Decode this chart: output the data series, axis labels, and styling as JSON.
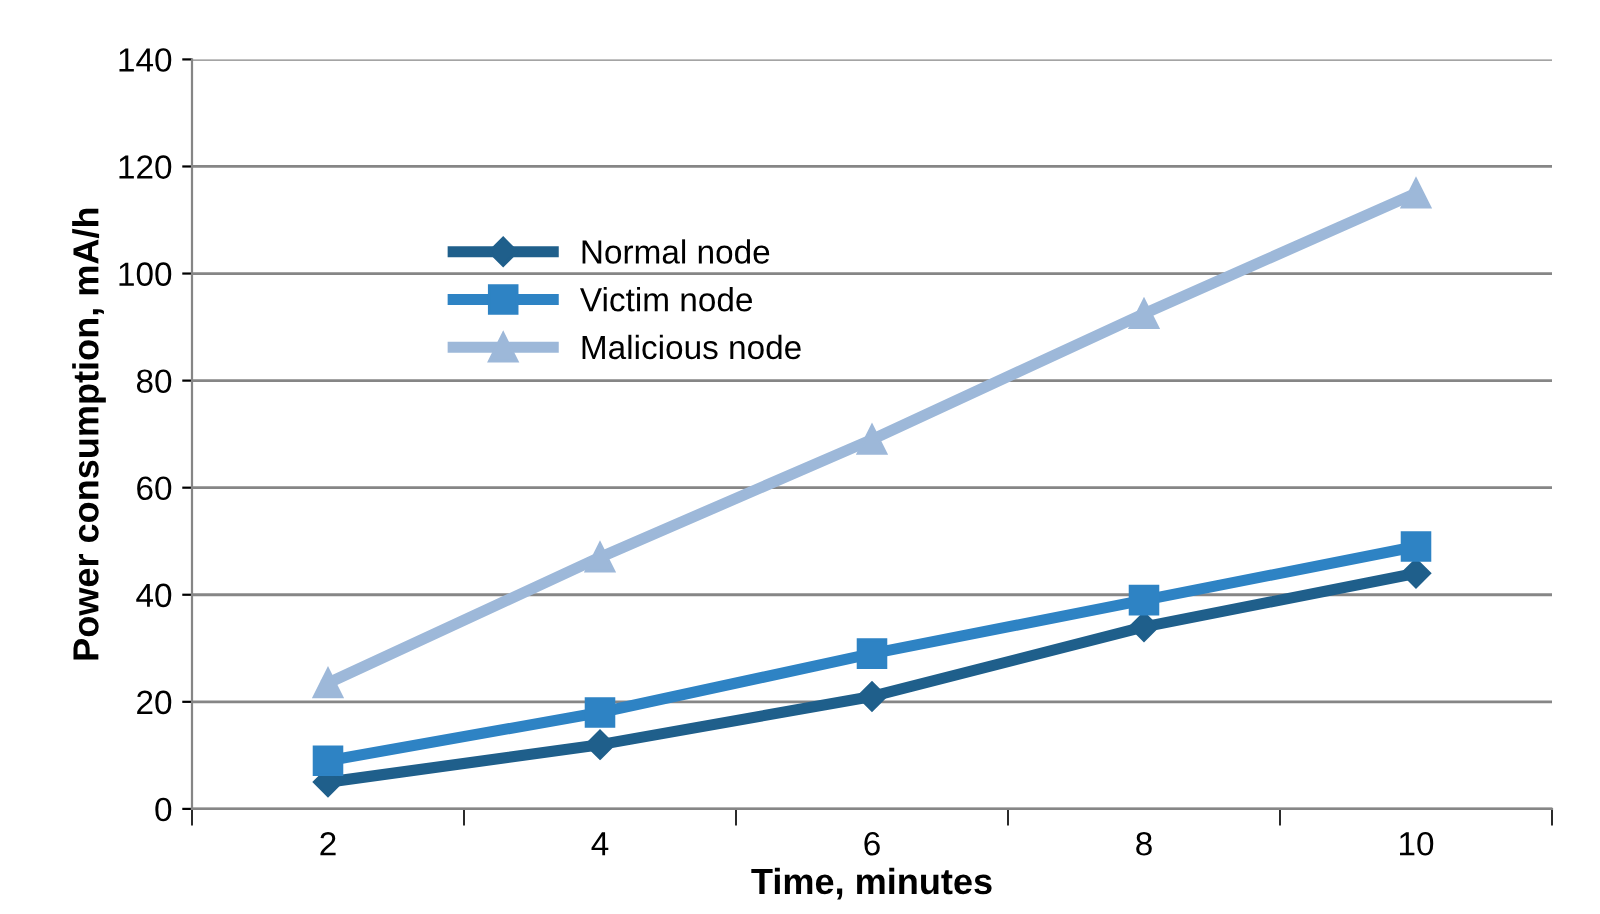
{
  "chart_data": {
    "type": "line",
    "xlabel": "Time, minutes",
    "ylabel": "Power consumption, mA/h",
    "categories": [
      "2",
      "4",
      "6",
      "8",
      "10"
    ],
    "series": [
      {
        "name": "Normal node",
        "color": "#1f5f8b",
        "marker": "diamond",
        "values": [
          5,
          12,
          21,
          34,
          44
        ]
      },
      {
        "name": "Victim node",
        "color": "#2e83c4",
        "marker": "square",
        "values": [
          9,
          18,
          29,
          39,
          49
        ]
      },
      {
        "name": "Malicious node",
        "color": "#9db8d9",
        "marker": "triangle",
        "values": [
          23.5,
          47,
          69,
          92.5,
          115
        ]
      }
    ],
    "ylim": [
      0,
      140
    ],
    "yticks": [
      0,
      20,
      40,
      60,
      80,
      100,
      120,
      140
    ],
    "grid": "y",
    "legend": "top left",
    "line_style": "solid"
  }
}
